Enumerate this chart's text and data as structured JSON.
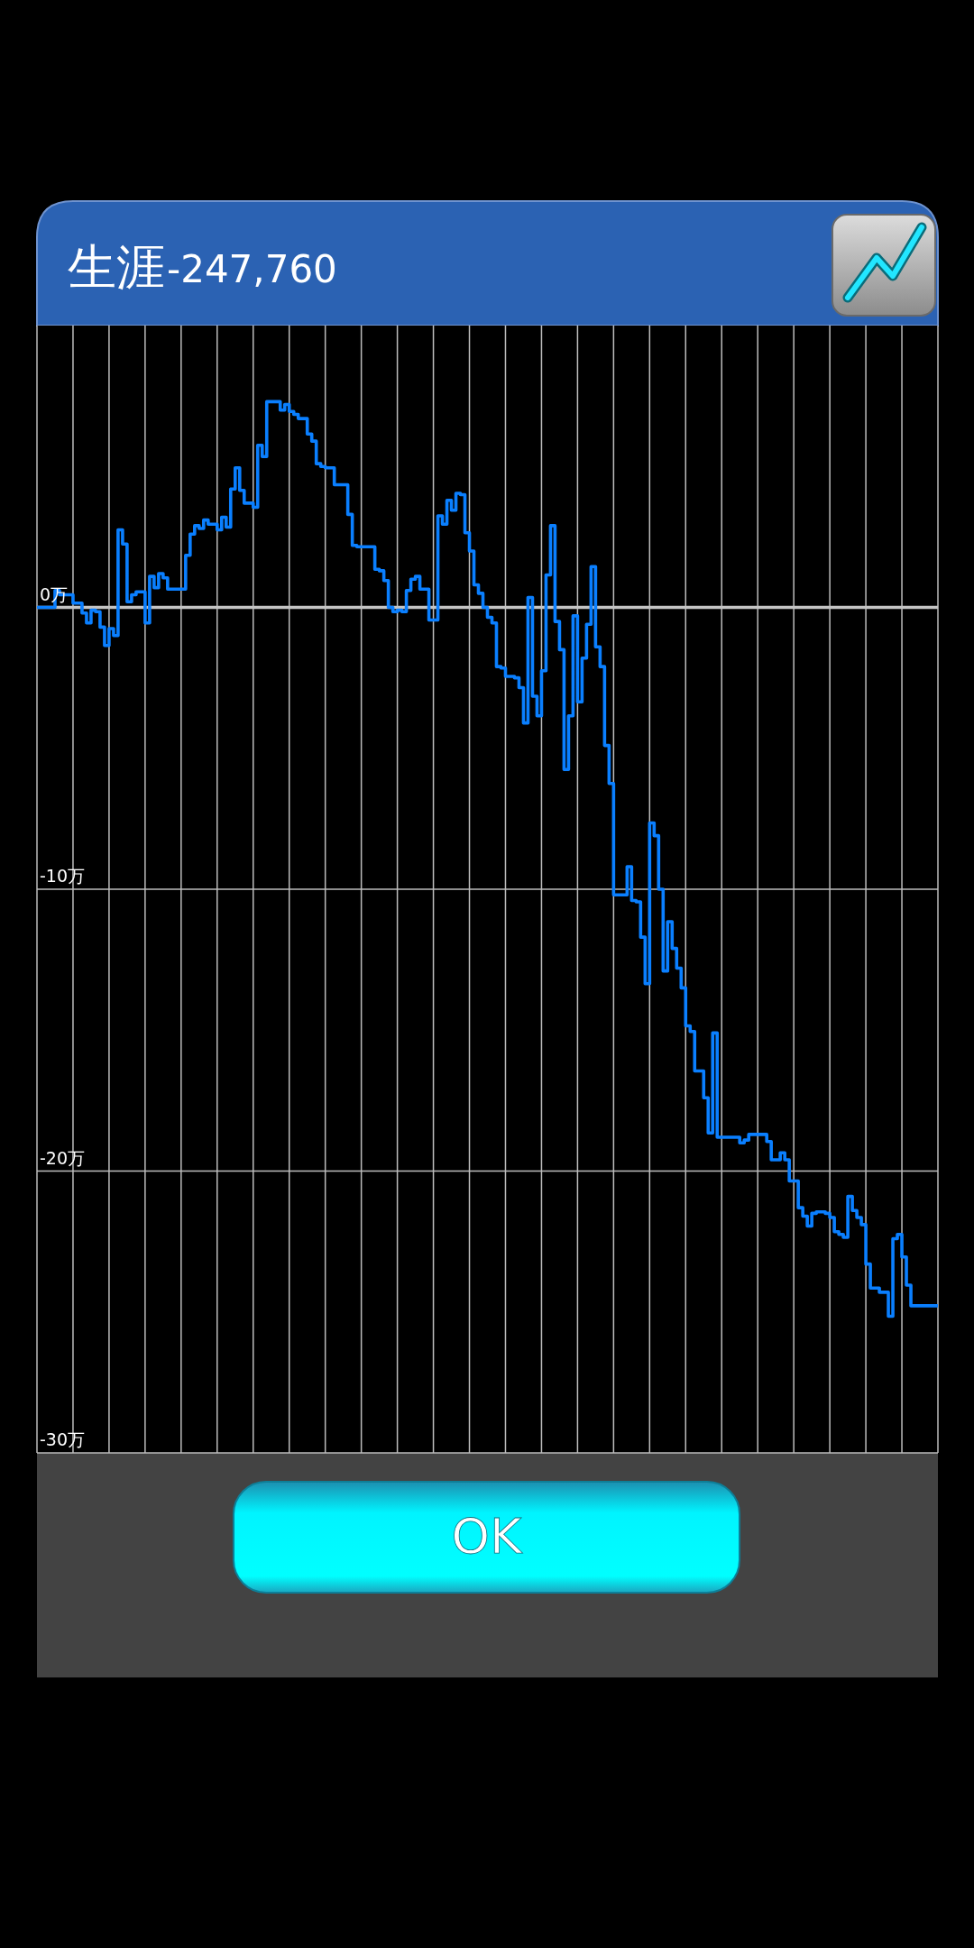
{
  "chart_data": {
    "type": "step",
    "title": "生涯",
    "subtitle": "-247,760",
    "annotations": [
      "OK"
    ],
    "color": "#0a7fff",
    "grid": true,
    "tick_labels": "y",
    "ylim": [
      -30,
      10
    ],
    "yticks": [
      {
        "value": 0,
        "label": "0万"
      },
      {
        "value": -10,
        "label": "-10万"
      },
      {
        "value": -20,
        "label": "-20万"
      },
      {
        "value": -30,
        "label": "-30万"
      }
    ],
    "categories": [
      null,
      null,
      null,
      null,
      null,
      null,
      null,
      null,
      null,
      null,
      null,
      null,
      null,
      null,
      null,
      null,
      null,
      null,
      null,
      null,
      null,
      null,
      null,
      null,
      null,
      null,
      null,
      null,
      null,
      null,
      null,
      null,
      null,
      null,
      null,
      null,
      null,
      null,
      null,
      null,
      null,
      null,
      null,
      null,
      null,
      null,
      null,
      null,
      null,
      null,
      null,
      null,
      null,
      null,
      null,
      null,
      null,
      null,
      null,
      null,
      null,
      null,
      null,
      null,
      null,
      null,
      null,
      null,
      null,
      null,
      null,
      null,
      null,
      null,
      null,
      null,
      null,
      null,
      null,
      null,
      null,
      null,
      null,
      null,
      null,
      null,
      null,
      null,
      null,
      null,
      null,
      null,
      null,
      null,
      null,
      null,
      null,
      null,
      null,
      null,
      null,
      null,
      null,
      null,
      null,
      null,
      null,
      null,
      null,
      null,
      null,
      null,
      null,
      null,
      null,
      null,
      null,
      null,
      null,
      null,
      null,
      null,
      null,
      null,
      null,
      null,
      null,
      null,
      null,
      null,
      null,
      null,
      null,
      null,
      null,
      null,
      null,
      null,
      null,
      null,
      null,
      null,
      null,
      null,
      null,
      null,
      null,
      null,
      null,
      null,
      null,
      null,
      null,
      null,
      null,
      null,
      null,
      null,
      null,
      null,
      null,
      null,
      null,
      null,
      null,
      null,
      null,
      null,
      null,
      null,
      null,
      null,
      null,
      null,
      null,
      null,
      null,
      null,
      null,
      null,
      null,
      null,
      null,
      null,
      null,
      null,
      null,
      null,
      null,
      null,
      null,
      null,
      null,
      null,
      null,
      null,
      null,
      null,
      null,
      null
    ],
    "values": [
      0,
      0,
      0,
      0,
      0.6,
      0.45,
      0.45,
      0.45,
      0.15,
      0.15,
      -0.2,
      -0.55,
      -0.1,
      -0.15,
      -0.7,
      -1.35,
      -0.75,
      -1.0,
      2.75,
      2.25,
      0.2,
      0.45,
      0.55,
      0.55,
      -0.55,
      1.1,
      0.7,
      1.2,
      1.05,
      0.65,
      0.65,
      0.65,
      0.65,
      1.85,
      2.6,
      2.9,
      2.8,
      3.1,
      2.95,
      2.95,
      2.75,
      3.2,
      2.85,
      4.2,
      4.95,
      4.15,
      3.7,
      3.7,
      3.55,
      5.75,
      5.35,
      7.3,
      7.3,
      7.3,
      7.0,
      7.2,
      6.95,
      6.85,
      6.7,
      6.7,
      6.15,
      5.9,
      5.1,
      5.0,
      4.95,
      4.95,
      4.35,
      4.35,
      4.35,
      3.3,
      2.2,
      2.15,
      2.15,
      2.15,
      2.15,
      1.35,
      1.3,
      0.95,
      0,
      -0.15,
      -0.1,
      -0.15,
      0.6,
      1.0,
      1.1,
      0.65,
      0.65,
      -0.45,
      -0.45,
      3.25,
      2.95,
      3.8,
      3.45,
      4.05,
      4.0,
      2.65,
      2.0,
      0.8,
      0.5,
      0,
      -0.35,
      -0.55,
      -2.1,
      -2.15,
      -2.45,
      -2.45,
      -2.5,
      -2.85,
      -4.1,
      0.35,
      -3.15,
      -3.85,
      -2.25,
      1.15,
      2.9,
      -0.5,
      -1.5,
      -5.75,
      -3.85,
      -0.3,
      -3.35,
      -1.8,
      -0.6,
      1.45,
      -1.4,
      -2.1,
      -4.9,
      -6.25,
      -10.2,
      -10.2,
      -10.2,
      -9.2,
      -10.4,
      -10.45,
      -11.7,
      -13.35,
      -7.65,
      -8.1,
      -10.0,
      -12.9,
      -11.15,
      -12.1,
      -12.8,
      -13.5,
      -14.85,
      -15.05,
      -16.45,
      -16.45,
      -17.4,
      -18.65,
      -15.1,
      -18.8,
      -18.8,
      -18.8,
      -18.8,
      -18.8,
      -19.0,
      -18.9,
      -18.7,
      -18.7,
      -18.7,
      -18.7,
      -18.95,
      -19.6,
      -19.6,
      -19.35,
      -19.6,
      -20.35,
      -20.35,
      -21.3,
      -21.6,
      -21.95,
      -21.5,
      -21.45,
      -21.45,
      -21.5,
      -21.65,
      -22.15,
      -22.25,
      -22.35,
      -20.9,
      -21.4,
      -21.65,
      -21.9,
      -23.3,
      -24.15,
      -24.15,
      -24.3,
      -24.3,
      -25.15,
      -22.4,
      -22.25,
      -23.05,
      -24.05,
      -24.78,
      -24.78,
      -24.78,
      -24.78,
      -24.78,
      -24.78
    ]
  }
}
